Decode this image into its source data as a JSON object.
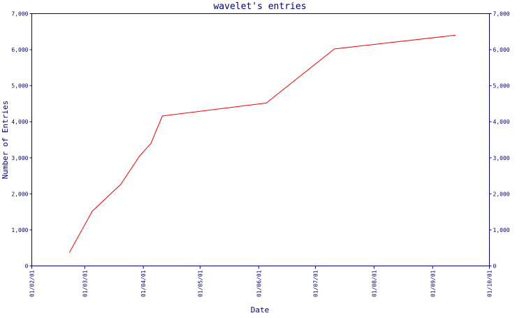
{
  "chart_data": {
    "type": "line",
    "title": "wavelet's entries",
    "xlabel": "Date",
    "ylabel": "Number of Entries",
    "colors": {
      "axis": "#000080",
      "line": "#ff0000",
      "background": "#ffffff"
    },
    "grid": false,
    "legend": "none",
    "xlim": [
      "2001-02-01",
      "2001-10-01"
    ],
    "ylim": [
      0,
      7000
    ],
    "x_ticks": [
      {
        "date": "2001-02-01",
        "label": "01/02/01"
      },
      {
        "date": "2001-03-01",
        "label": "01/03/01"
      },
      {
        "date": "2001-04-01",
        "label": "01/04/01"
      },
      {
        "date": "2001-05-01",
        "label": "01/05/01"
      },
      {
        "date": "2001-06-01",
        "label": "01/06/01"
      },
      {
        "date": "2001-07-01",
        "label": "01/07/01"
      },
      {
        "date": "2001-08-01",
        "label": "01/08/01"
      },
      {
        "date": "2001-09-01",
        "label": "01/09/01"
      },
      {
        "date": "2001-10-01",
        "label": "01/10/01"
      }
    ],
    "y_ticks": [
      {
        "value": 0,
        "label": "0"
      },
      {
        "value": 1000,
        "label": "1,000"
      },
      {
        "value": 2000,
        "label": "2,000"
      },
      {
        "value": 3000,
        "label": "3,000"
      },
      {
        "value": 4000,
        "label": "4,000"
      },
      {
        "value": 5000,
        "label": "5,000"
      },
      {
        "value": 6000,
        "label": "6,000"
      },
      {
        "value": 7000,
        "label": "7,000"
      }
    ],
    "series": [
      {
        "x": [
          "2001-02-21",
          "2001-03-05",
          "2001-03-20",
          "2001-03-30",
          "2001-04-05",
          "2001-04-11",
          "2001-06-05",
          "2001-07-11",
          "2001-09-13"
        ],
        "y": [
          380,
          1520,
          2260,
          3050,
          3400,
          4160,
          4520,
          6020,
          6400
        ]
      }
    ]
  }
}
